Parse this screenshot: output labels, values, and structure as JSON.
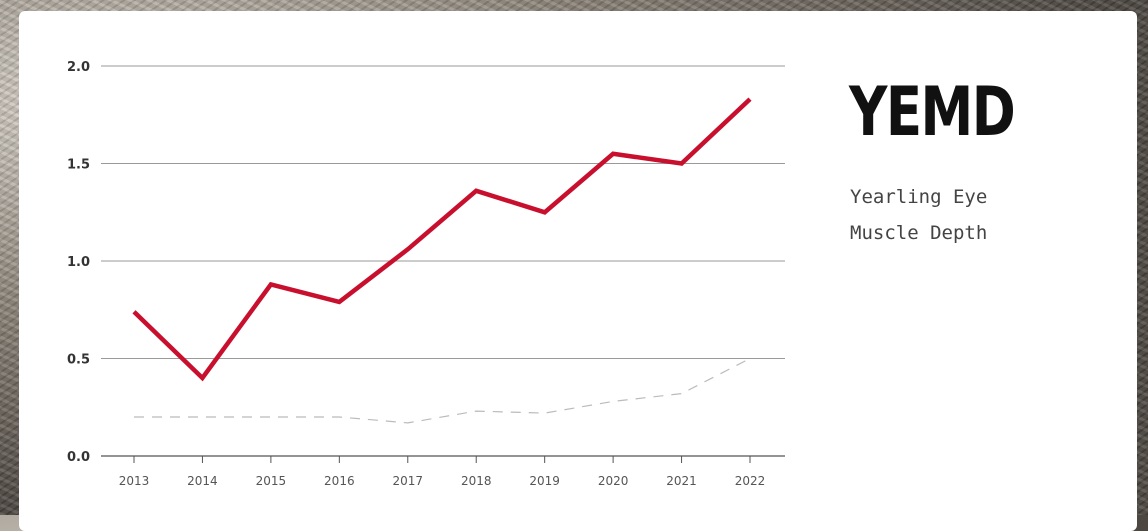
{
  "title": "YEMD",
  "subtitle": "Yearling Eye\nMuscle Depth",
  "chart_data": {
    "type": "line",
    "x": [
      "2013",
      "2014",
      "2015",
      "2016",
      "2017",
      "2018",
      "2019",
      "2020",
      "2021",
      "2022"
    ],
    "series": [
      {
        "values": [
          0.74,
          0.4,
          0.88,
          0.79,
          1.06,
          1.36,
          1.25,
          1.55,
          1.5,
          1.83
        ],
        "color": "#c8102e",
        "style": "solid"
      },
      {
        "values": [
          0.2,
          0.2,
          0.2,
          0.2,
          0.17,
          0.23,
          0.22,
          0.28,
          0.32,
          0.5
        ],
        "color": "#bbbbbb",
        "style": "dashed"
      }
    ],
    "y_ticks": [
      "0.0",
      "0.5",
      "1.0",
      "1.5",
      "2.0"
    ],
    "ylim": [
      0,
      2.0
    ],
    "grid": true,
    "legend": false
  }
}
